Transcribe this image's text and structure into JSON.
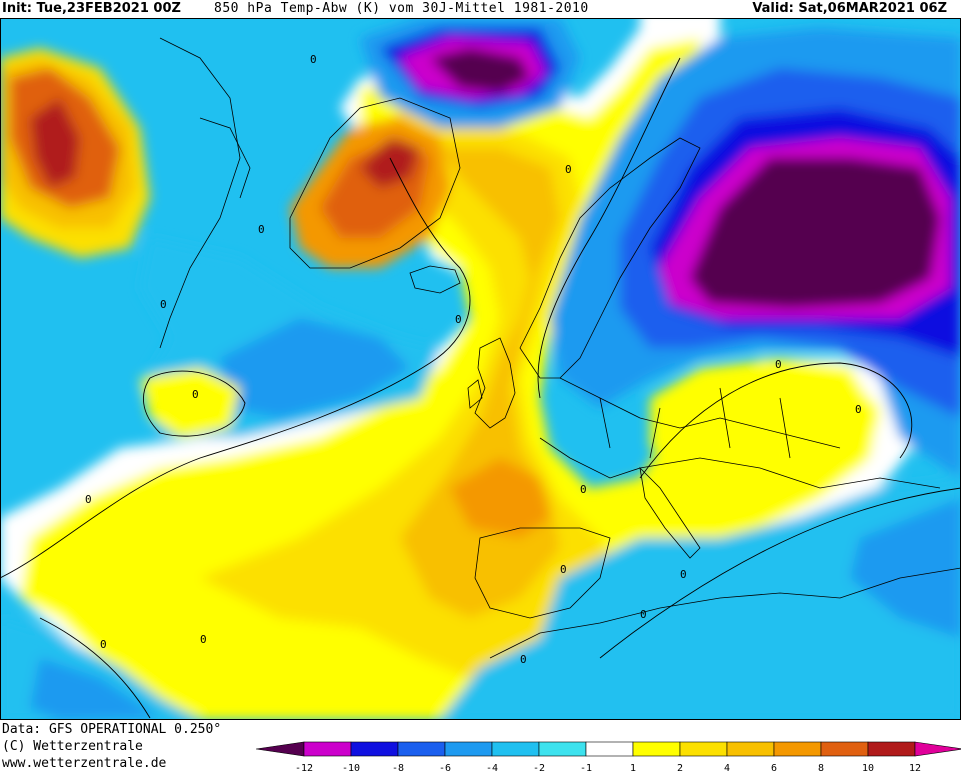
{
  "header": {
    "init": "Init: Tue,23FEB2021 00Z",
    "title": "850 hPa Temp-Abw (K) vom 30J-Mittel 1981-2010",
    "valid": "Valid: Sat,06MAR2021 06Z"
  },
  "footer": {
    "data_source": "Data: GFS OPERATIONAL 0.250°",
    "copyright": "(C) Wetterzentrale",
    "website": "www.wetterzentrale.de"
  },
  "map": {
    "contour_labels": [
      "0",
      "0",
      "0",
      "0",
      "0",
      "0",
      "0",
      "0",
      "0",
      "0",
      "0",
      "0",
      "0",
      "0",
      "0",
      "0"
    ]
  },
  "legend": {
    "tick_labels": [
      "-12",
      "-10",
      "-8",
      "-6",
      "-4",
      "-2",
      "-1",
      "1",
      "2",
      "4",
      "6",
      "8",
      "10",
      "12"
    ],
    "colors": {
      "lt_minus12": "#55004f",
      "m12_m10": "#cc00cc",
      "m10_m8": "#1010e0",
      "m8_m6": "#1b5fee",
      "m6_m4": "#1e9af0",
      "m4_m2": "#20c0f0",
      "m2_m1": "#3de2ee",
      "m1_p1": "#ffffff",
      "p1_p2": "#ffff00",
      "p2_p4": "#fce000",
      "p4_p6": "#f8c000",
      "p6_p8": "#f49800",
      "p8_p10": "#e06010",
      "p10_p12": "#b01a1a",
      "gt_p12": "#e0009a"
    }
  }
}
